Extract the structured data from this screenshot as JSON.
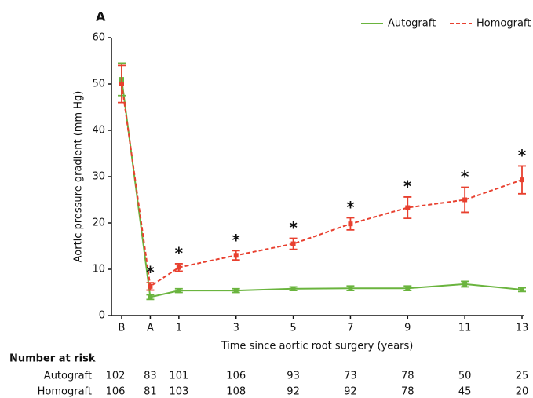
{
  "panel_label": "A",
  "chart_data": {
    "type": "line",
    "x_label": "Time since aortic root surgery (years)",
    "y_label": "Aortic pressure gradient (mm Hg)",
    "x": [
      -1,
      0,
      1,
      3,
      5,
      7,
      9,
      11,
      13
    ],
    "xlim": [
      -1,
      13
    ],
    "xticks": [
      {
        "value": -1,
        "label": "B"
      },
      {
        "value": 0,
        "label": "A"
      },
      1,
      3,
      5,
      7,
      9,
      11,
      13
    ],
    "ylim": [
      0,
      60
    ],
    "yticks": [
      0,
      10,
      20,
      30,
      40,
      50,
      60
    ],
    "legend_position": "top-right",
    "series": [
      {
        "name": "Autograft",
        "color": "#6ab43e",
        "dash": false,
        "values": [
          51,
          4,
          5.4,
          5.4,
          5.8,
          5.9,
          5.9,
          6.8,
          5.6
        ],
        "errors": [
          3.5,
          0.5,
          0.4,
          0.4,
          0.4,
          0.5,
          0.5,
          0.6,
          0.4
        ]
      },
      {
        "name": "Homograft",
        "color": "#e8402f",
        "dash": true,
        "values": [
          50,
          6.3,
          10.4,
          13,
          15.5,
          19.8,
          23.3,
          25,
          29.3
        ],
        "errors": [
          4,
          0.8,
          0.8,
          1,
          1.2,
          1.3,
          2.3,
          2.7,
          3
        ]
      }
    ],
    "significance": [
      null,
      "*",
      "*",
      "*",
      "*",
      "*",
      "*",
      "*",
      "*"
    ]
  },
  "risk_table": {
    "title": "Number at risk",
    "rows": [
      {
        "name": "Autograft",
        "values": [
          102,
          83,
          101,
          106,
          93,
          73,
          78,
          50,
          25
        ]
      },
      {
        "name": "Homograft",
        "values": [
          106,
          81,
          103,
          108,
          92,
          92,
          78,
          45,
          20
        ]
      }
    ]
  }
}
